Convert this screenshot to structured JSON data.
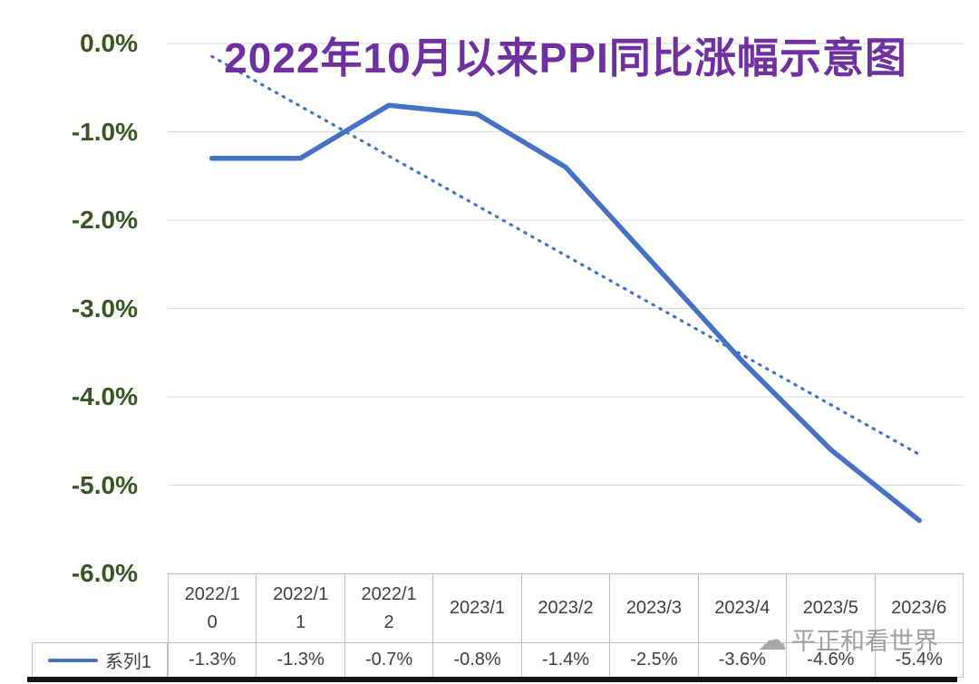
{
  "title": "2022年10月以来PPI同比涨幅示意图",
  "watermark": {
    "text": "平正和看世界",
    "icon": "cloud-icon"
  },
  "chart_data": {
    "type": "line",
    "title": "2022年10月以来PPI同比涨幅示意图",
    "categories": [
      "2022/10",
      "2022/11",
      "2022/12",
      "2023/1",
      "2023/2",
      "2023/3",
      "2023/4",
      "2023/5",
      "2023/6"
    ],
    "series": [
      {
        "name": "系列1",
        "values": [
          -1.3,
          -1.3,
          -0.7,
          -0.8,
          -1.4,
          -2.5,
          -3.6,
          -4.6,
          -5.4
        ],
        "color": "#4472C4",
        "style": "solid"
      }
    ],
    "value_labels": [
      "-1.3%",
      "-1.3%",
      "-0.7%",
      "-0.8%",
      "-1.4%",
      "-2.5%",
      "-3.6%",
      "-4.6%",
      "-5.4%"
    ],
    "trendline": {
      "type": "linear",
      "style": "dotted",
      "color": "#4472C4"
    },
    "y_axis": {
      "ticks": [
        "0.0%",
        "-1.0%",
        "-2.0%",
        "-3.0%",
        "-4.0%",
        "-5.0%",
        "-6.0%"
      ],
      "max": 0.0,
      "min": -6.0,
      "unit": "%"
    },
    "grid": true,
    "legend_position": "bottom-table"
  },
  "colors": {
    "title": "#7030A0",
    "line": "#4472C4",
    "trendline": "#4472C4",
    "axis_label": "#375623",
    "grid": "#D9D9D9",
    "table_border": "#BFBFBF",
    "table_text": "#404040"
  }
}
